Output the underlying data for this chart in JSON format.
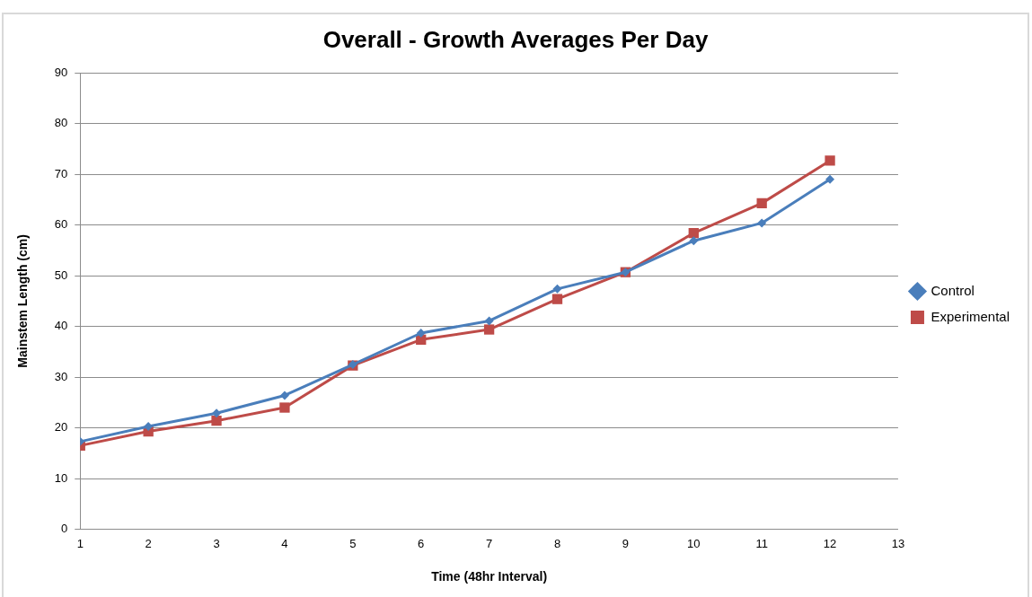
{
  "chart_data": {
    "type": "line",
    "title": "Overall - Growth Averages Per Day",
    "xlabel": "Time (48hr Interval)",
    "ylabel": "Mainstem Length (cm)",
    "x": [
      1,
      2,
      3,
      4,
      5,
      6,
      7,
      8,
      9,
      10,
      11,
      12
    ],
    "series": [
      {
        "name": "Control",
        "color": "#4a7ebb",
        "marker": "diamond",
        "values": [
          17.3,
          20.3,
          22.9,
          26.4,
          32.5,
          38.7,
          41.1,
          47.4,
          50.7,
          56.9,
          60.4,
          69.0
        ]
      },
      {
        "name": "Experimental",
        "color": "#be4b48",
        "marker": "square",
        "values": [
          16.5,
          19.3,
          21.4,
          24.0,
          32.3,
          37.4,
          39.4,
          45.4,
          50.7,
          58.4,
          64.3,
          72.7
        ]
      }
    ],
    "xlim": [
      1,
      13
    ],
    "xticks": [
      1,
      2,
      3,
      4,
      5,
      6,
      7,
      8,
      9,
      10,
      11,
      12,
      13
    ],
    "ylim": [
      0,
      90
    ],
    "yticks": [
      0,
      10,
      20,
      30,
      40,
      50,
      60,
      70,
      80,
      90
    ],
    "grid": "y",
    "legend": "right",
    "line_style": "solid"
  }
}
